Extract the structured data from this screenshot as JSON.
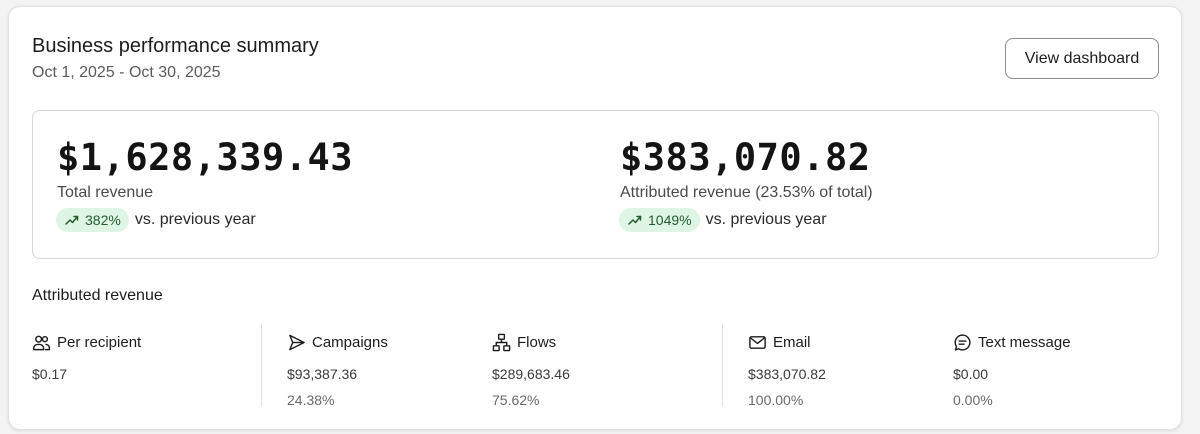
{
  "header": {
    "title": "Business performance summary",
    "date_range": "Oct 1, 2025 - Oct 30, 2025",
    "view_dashboard_label": "View dashboard"
  },
  "summary": {
    "total": {
      "amount": "$1,628,339.43",
      "label": "Total revenue",
      "change": "382%",
      "comparison": "vs. previous year"
    },
    "attributed": {
      "amount": "$383,070.82",
      "label": "Attributed revenue (23.53% of total)",
      "change": "1049%",
      "comparison": "vs. previous year"
    },
    "trend_icon": "trending-up-icon",
    "badge_color": "#dff5e3"
  },
  "attributed_revenue": {
    "title": "Attributed revenue",
    "columns": [
      {
        "icon": "users-icon",
        "label": "Per recipient",
        "value": "$0.17",
        "percent": ""
      },
      {
        "icon": "send-icon",
        "label": "Campaigns",
        "value": "$93,387.36",
        "percent": "24.38%"
      },
      {
        "icon": "flow-icon",
        "label": "Flows",
        "value": "$289,683.46",
        "percent": "75.62%"
      },
      {
        "icon": "mail-icon",
        "label": "Email",
        "value": "$383,070.82",
        "percent": "100.00%"
      },
      {
        "icon": "message-icon",
        "label": "Text message",
        "value": "$0.00",
        "percent": "0.00%"
      }
    ]
  }
}
